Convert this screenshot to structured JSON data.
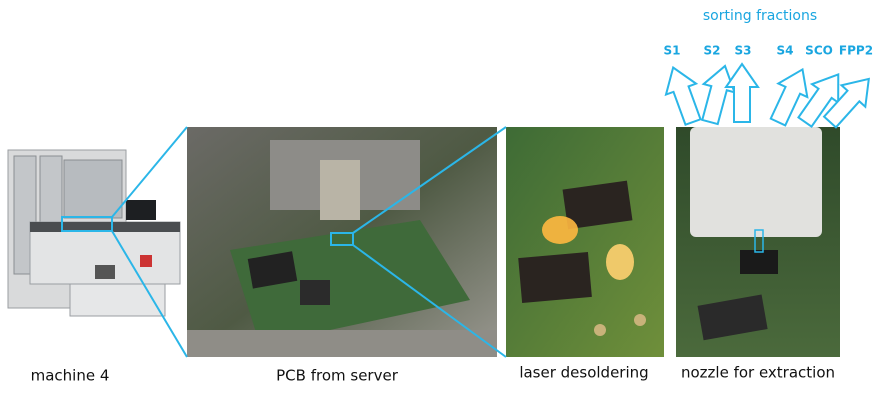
{
  "figure": {
    "title": "sorting fractions",
    "fractions": [
      "S1",
      "S2",
      "S3",
      "S4",
      "SCO",
      "FPP2"
    ],
    "captions": [
      "machine 4",
      "PCB from server",
      "laser desoldering",
      "nozzle for extraction"
    ]
  }
}
